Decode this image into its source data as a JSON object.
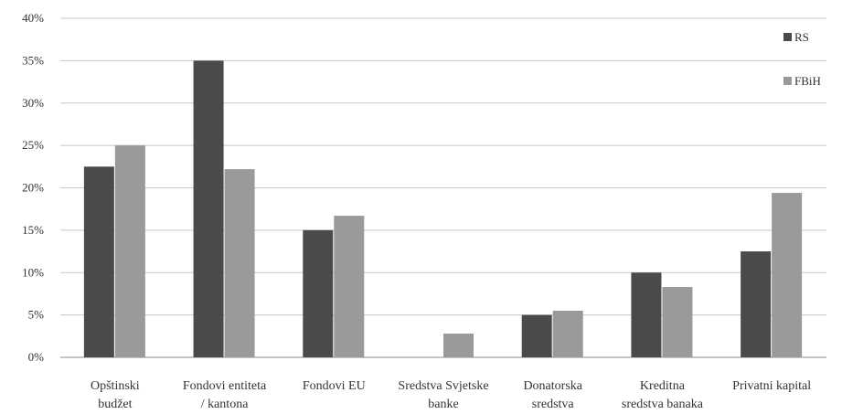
{
  "chart_data": {
    "type": "bar",
    "categories": [
      [
        "Opštinski",
        "budžet"
      ],
      [
        "Fondovi entiteta",
        "/ kantona"
      ],
      [
        "Fondovi EU"
      ],
      [
        "Sredstva Svjetske",
        "banke"
      ],
      [
        "Donatorska",
        "sredstva"
      ],
      [
        "Kreditna",
        "sredstva banaka"
      ],
      [
        "Privatni kapital"
      ]
    ],
    "series": [
      {
        "name": "RS",
        "color": "#4a4a4a",
        "values": [
          22.5,
          35.0,
          15.0,
          0.0,
          5.0,
          10.0,
          12.5
        ]
      },
      {
        "name": "FBiH",
        "color": "#9a9a9a",
        "values": [
          25.0,
          22.2,
          16.7,
          2.8,
          5.5,
          8.3,
          19.4
        ]
      }
    ],
    "y_ticks": [
      "0%",
      "5%",
      "10%",
      "15%",
      "20%",
      "25%",
      "30%",
      "35%",
      "40%"
    ],
    "ylim": [
      0,
      40
    ],
    "grid": true,
    "legend": "top-right"
  }
}
